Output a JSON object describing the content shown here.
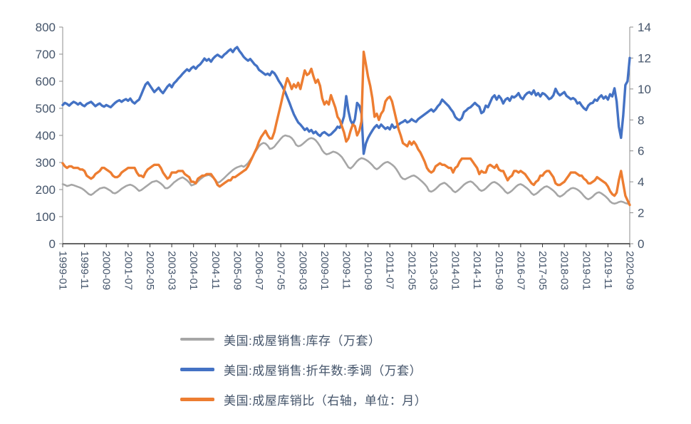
{
  "styles": {
    "text_color": "#44546A",
    "axis_line_color": "#8C8C8C",
    "bottom_axis_color": "#333333",
    "background": "#FFFFFF"
  },
  "chart_data": {
    "type": "line",
    "title": "",
    "legend_position": "bottom",
    "grid": "off",
    "left_axis": {
      "min": 0,
      "max": 800,
      "ticks": [
        0,
        100,
        200,
        300,
        400,
        500,
        600,
        700,
        800
      ]
    },
    "right_axis": {
      "min": 0,
      "max": 14,
      "ticks": [
        0,
        2,
        4,
        6,
        8,
        10,
        12,
        14
      ]
    },
    "x_tick_step": 10,
    "x_tick_labels": [
      "1999-01",
      "1999-11",
      "2000-09",
      "2001-07",
      "2002-05",
      "2003-03",
      "2004-01",
      "2004-11",
      "2005-09",
      "2006-07",
      "2007-05",
      "2008-03",
      "2009-01",
      "2009-11",
      "2010-09",
      "2011-07",
      "2012-05",
      "2013-03",
      "2014-01",
      "2014-11",
      "2015-09",
      "2016-07",
      "2017-05",
      "2018-03",
      "2019-01",
      "2019-11",
      "2020-09"
    ],
    "series": [
      {
        "name": "美国:成屋销售:库存（万套）",
        "color": "#A6A6A6",
        "axis": "left",
        "stroke_width": 2.6,
        "values": [
          220,
          217,
          213,
          215,
          218,
          216,
          213,
          210,
          207,
          203,
          197,
          190,
          183,
          180,
          185,
          192,
          198,
          204,
          206,
          208,
          205,
          200,
          195,
          188,
          186,
          190,
          196,
          203,
          208,
          213,
          216,
          218,
          215,
          210,
          203,
          195,
          198,
          204,
          210,
          216,
          222,
          228,
          230,
          232,
          228,
          222,
          215,
          205,
          205,
          210,
          218,
          226,
          232,
          238,
          242,
          245,
          240,
          234,
          226,
          215,
          218,
          222,
          230,
          238,
          244,
          250,
          252,
          254,
          250,
          244,
          236,
          225,
          228,
          235,
          242,
          250,
          258,
          265,
          272,
          278,
          282,
          285,
          288,
          284,
          290,
          298,
          310,
          322,
          335,
          348,
          360,
          368,
          372,
          370,
          362,
          350,
          352,
          358,
          368,
          378,
          388,
          396,
          400,
          398,
          396,
          390,
          380,
          365,
          360,
          362,
          368,
          375,
          382,
          388,
          390,
          388,
          382,
          372,
          360,
          345,
          335,
          330,
          332,
          336,
          340,
          338,
          334,
          328,
          320,
          308,
          295,
          282,
          278,
          285,
          295,
          305,
          312,
          316,
          314,
          310,
          305,
          298,
          290,
          280,
          275,
          280,
          288,
          295,
          300,
          302,
          298,
          292,
          285,
          275,
          262,
          248,
          240,
          238,
          242,
          246,
          250,
          252,
          248,
          242,
          235,
          228,
          220,
          210,
          195,
          192,
          196,
          202,
          210,
          218,
          222,
          225,
          220,
          212,
          205,
          195,
          190,
          195,
          202,
          210,
          218,
          224,
          228,
          230,
          226,
          218,
          210,
          200,
          195,
          198,
          204,
          212,
          220,
          226,
          228,
          224,
          218,
          210,
          202,
          192,
          186,
          190,
          196,
          204,
          212,
          218,
          220,
          216,
          210,
          204,
          196,
          186,
          180,
          184,
          190,
          198,
          204,
          210,
          212,
          208,
          202,
          196,
          188,
          178,
          174,
          178,
          184,
          192,
          198,
          204,
          206,
          204,
          200,
          194,
          186,
          176,
          168,
          164,
          168,
          174,
          182,
          188,
          190,
          186,
          180,
          174,
          166,
          156,
          150,
          148,
          150,
          154,
          156,
          154,
          150,
          148,
          146
        ]
      },
      {
        "name": "美国:成屋销售:折年数:季调（万套）",
        "color": "#4472C4",
        "axis": "left",
        "stroke_width": 3.4,
        "values": [
          512,
          520,
          516,
          510,
          518,
          524,
          520,
          514,
          520,
          512,
          508,
          516,
          520,
          524,
          516,
          508,
          514,
          518,
          510,
          506,
          512,
          508,
          504,
          512,
          520,
          526,
          530,
          524,
          530,
          534,
          528,
          536,
          524,
          518,
          526,
          532,
          550,
          570,
          588,
          596,
          584,
          572,
          560,
          568,
          576,
          564,
          556,
          568,
          580,
          588,
          578,
          592,
          600,
          610,
          618,
          628,
          636,
          644,
          638,
          648,
          654,
          646,
          656,
          662,
          672,
          684,
          676,
          682,
          672,
          684,
          692,
          698,
          692,
          688,
          698,
          704,
          712,
          718,
          708,
          720,
          726,
          712,
          702,
          690,
          682,
          676,
          682,
          672,
          662,
          656,
          642,
          636,
          630,
          624,
          628,
          622,
          636,
          630,
          618,
          602,
          590,
          576,
          560,
          540,
          520,
          498,
          478,
          462,
          448,
          440,
          430,
          420,
          426,
          414,
          420,
          408,
          414,
          404,
          398,
          408,
          412,
          406,
          400,
          404,
          412,
          420,
          432,
          428,
          444,
          470,
          545,
          490,
          455,
          440,
          460,
          520,
          510,
          480,
          332,
          370,
          390,
          405,
          418,
          430,
          438,
          428,
          440,
          432,
          424,
          430,
          422,
          440,
          428,
          432,
          440,
          446,
          450,
          456,
          448,
          452,
          460,
          454,
          450,
          460,
          466,
          472,
          478,
          484,
          490,
          496,
          488,
          496,
          508,
          516,
          532,
          524,
          516,
          508,
          496,
          486,
          468,
          460,
          456,
          464,
          486,
          492,
          500,
          504,
          512,
          520,
          512,
          506,
          482,
          488,
          510,
          504,
          522,
          540,
          548,
          532,
          546,
          536,
          518,
          532,
          538,
          528,
          544,
          540,
          546,
          556,
          540,
          534,
          548,
          556,
          560,
          552,
          566,
          548,
          556,
          544,
          556,
          552,
          544,
          534,
          538,
          548,
          572,
          556,
          548,
          554,
          560,
          546,
          540,
          534,
          538,
          532,
          518,
          522,
          510,
          500,
          494,
          510,
          518,
          520,
          532,
          528,
          540,
          548,
          536,
          544,
          532,
          552,
          544,
          574,
          526,
          432,
          391,
          472,
          586,
          600,
          686
        ]
      },
      {
        "name": "美国:成屋库销比（右轴，单位：月）",
        "color": "#ED7D31",
        "axis": "right",
        "stroke_width": 3.4,
        "values": [
          5.2,
          5.0,
          4.9,
          5.0,
          5.0,
          4.9,
          4.9,
          4.9,
          4.8,
          4.8,
          4.7,
          4.4,
          4.3,
          4.2,
          4.3,
          4.5,
          4.6,
          4.7,
          4.9,
          4.9,
          4.8,
          4.7,
          4.6,
          4.4,
          4.3,
          4.3,
          4.4,
          4.6,
          4.7,
          4.8,
          4.9,
          4.9,
          4.9,
          4.9,
          4.6,
          4.4,
          4.4,
          4.3,
          4.6,
          4.8,
          4.9,
          5.0,
          5.1,
          5.1,
          5.1,
          4.9,
          4.6,
          4.4,
          4.2,
          4.3,
          4.6,
          4.6,
          4.6,
          4.7,
          4.7,
          4.7,
          4.5,
          4.4,
          4.3,
          4.0,
          4.0,
          3.9,
          4.2,
          4.3,
          4.4,
          4.4,
          4.5,
          4.5,
          4.5,
          4.3,
          4.1,
          3.8,
          3.7,
          3.8,
          3.9,
          4.0,
          4.1,
          4.1,
          4.3,
          4.3,
          4.4,
          4.5,
          4.6,
          4.7,
          4.8,
          5.0,
          5.3,
          5.6,
          5.9,
          6.2,
          6.6,
          6.9,
          7.1,
          7.3,
          7.0,
          6.8,
          6.8,
          7.2,
          7.8,
          8.4,
          9.0,
          9.6,
          10.2,
          10.7,
          10.4,
          10.0,
          10.3,
          10.1,
          10.4,
          10.0,
          10.6,
          11.2,
          10.9,
          11.0,
          11.3,
          10.8,
          10.4,
          10.6,
          10.2,
          9.4,
          9.0,
          9.2,
          9.0,
          9.6,
          9.2,
          8.8,
          8.2,
          8.0,
          7.6,
          7.2,
          6.6,
          6.8,
          7.3,
          7.7,
          7.6,
          7.0,
          7.3,
          7.9,
          12.4,
          11.6,
          10.8,
          10.2,
          9.4,
          8.2,
          8.4,
          8.0,
          8.4,
          8.6,
          9.2,
          9.4,
          9.5,
          9.2,
          8.6,
          8.0,
          7.4,
          7.0,
          6.5,
          6.4,
          6.3,
          6.6,
          6.4,
          6.6,
          6.4,
          6.1,
          5.9,
          5.6,
          5.3,
          4.9,
          4.7,
          4.6,
          4.7,
          5.0,
          5.1,
          5.2,
          5.1,
          5.1,
          5.0,
          4.9,
          4.9,
          4.6,
          4.9,
          5.0,
          5.3,
          5.5,
          5.5,
          5.5,
          5.5,
          5.5,
          5.3,
          5.1,
          4.9,
          4.5,
          4.7,
          4.6,
          4.6,
          5.0,
          5.1,
          5.0,
          4.9,
          5.1,
          4.8,
          4.7,
          4.7,
          4.4,
          4.1,
          4.3,
          4.4,
          4.7,
          4.7,
          4.6,
          4.7,
          4.6,
          4.5,
          4.3,
          4.1,
          3.9,
          3.8,
          4.0,
          4.1,
          4.4,
          4.4,
          4.6,
          4.7,
          4.7,
          4.5,
          4.3,
          3.9,
          3.8,
          3.8,
          3.9,
          4.0,
          4.2,
          4.4,
          4.6,
          4.6,
          4.6,
          4.5,
          4.4,
          4.4,
          4.2,
          4.1,
          3.9,
          3.9,
          4.0,
          4.1,
          4.3,
          4.2,
          4.1,
          4.0,
          3.9,
          3.7,
          3.4,
          3.2,
          3.1,
          3.3,
          4.1,
          4.7,
          3.9,
          3.1,
          2.8,
          2.5
        ]
      }
    ]
  }
}
